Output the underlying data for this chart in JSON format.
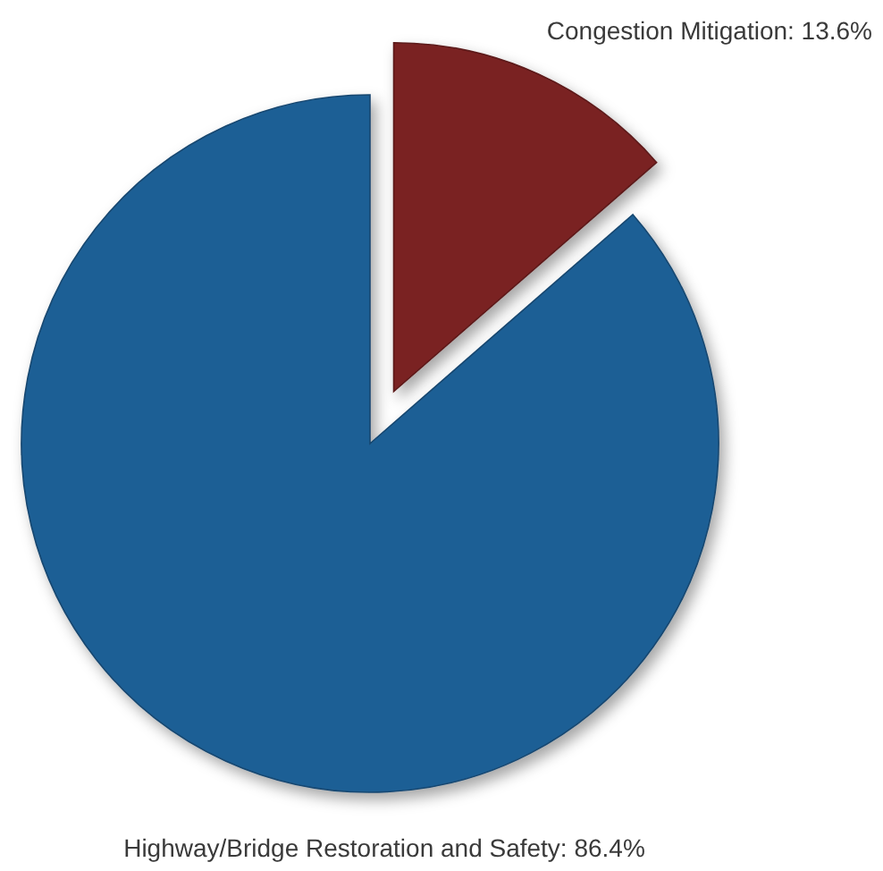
{
  "chart_data": {
    "type": "pie",
    "categories": [
      "Congestion Mitigation",
      "Highway/Bridge Restoration and Safety"
    ],
    "values": [
      13.6,
      86.4
    ],
    "value_labels": [
      "13.6%",
      "86.4%"
    ],
    "colors": [
      "#7a2222",
      "#1e5f95"
    ]
  }
}
